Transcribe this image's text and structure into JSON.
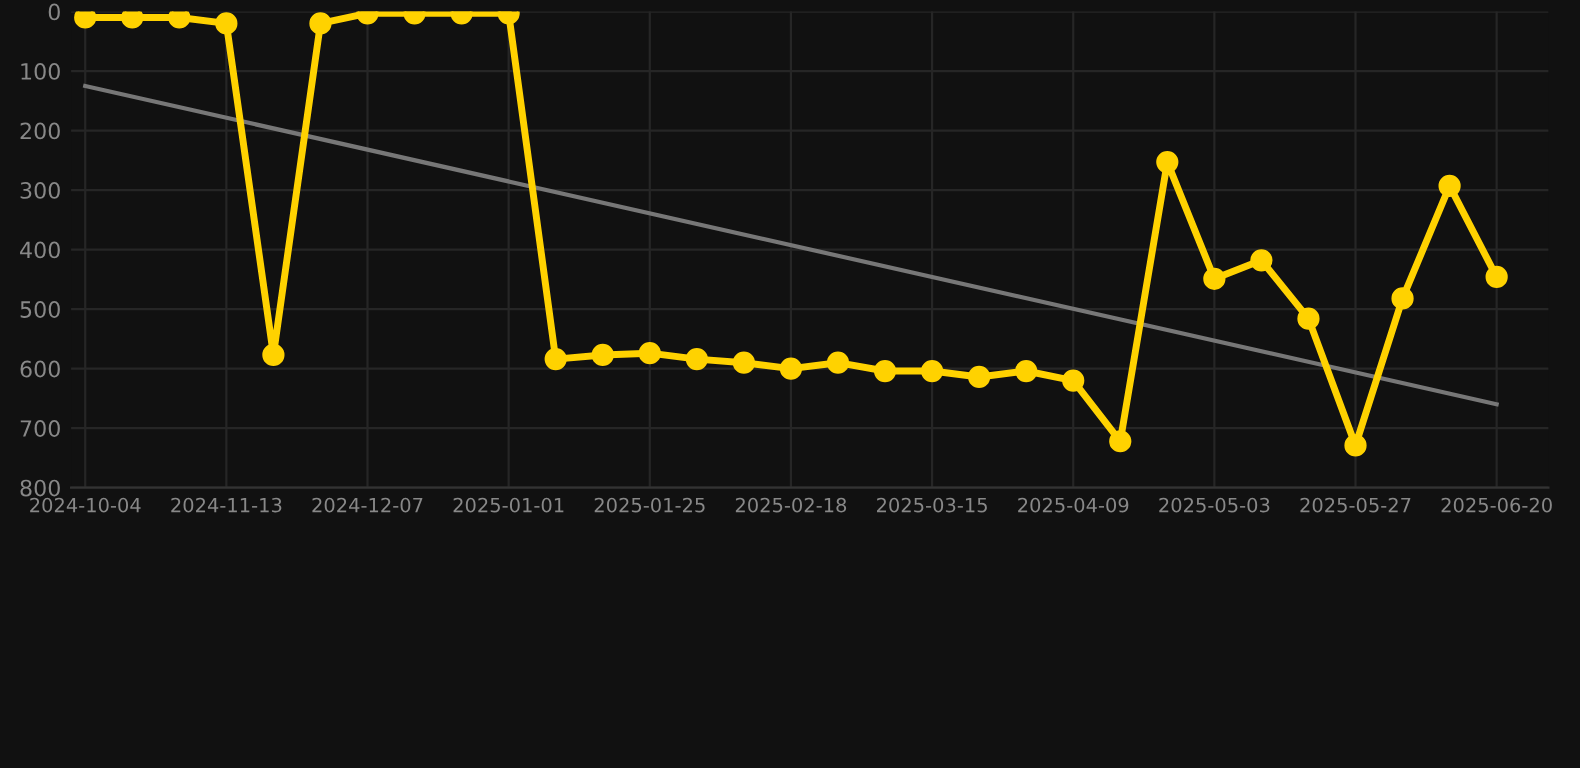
{
  "chart_data": {
    "type": "line",
    "categories": [
      "2024-10-04",
      null,
      null,
      "2024-11-13",
      null,
      null,
      "2024-12-07",
      null,
      null,
      "2025-01-01",
      null,
      null,
      "2025-01-25",
      null,
      null,
      "2025-02-18",
      null,
      null,
      "2025-03-15",
      null,
      null,
      "2025-04-09",
      null,
      null,
      "2025-05-03",
      null,
      null,
      "2025-05-27",
      null,
      null,
      "2025-06-20"
    ],
    "series": [
      {
        "color": "#ffd200",
        "marker": "circle",
        "values": [
          10,
          10,
          10,
          20,
          577,
          20,
          3,
          3,
          3,
          3,
          584,
          577,
          574,
          584,
          590,
          600,
          590,
          604,
          604,
          614,
          604,
          620,
          722,
          253,
          449,
          418,
          516,
          729,
          482,
          293,
          446
        ]
      },
      {
        "color": "#777777",
        "marker": "none",
        "values": [
          125,
          null,
          null,
          null,
          null,
          null,
          null,
          null,
          null,
          null,
          null,
          null,
          null,
          null,
          null,
          null,
          null,
          null,
          null,
          null,
          null,
          null,
          null,
          null,
          null,
          null,
          null,
          null,
          null,
          null,
          660
        ]
      }
    ],
    "ylim": [
      800,
      0
    ],
    "yticks": [
      0,
      100,
      200,
      300,
      400,
      500,
      600,
      700,
      800
    ],
    "grid": true,
    "line_style": "solid"
  }
}
